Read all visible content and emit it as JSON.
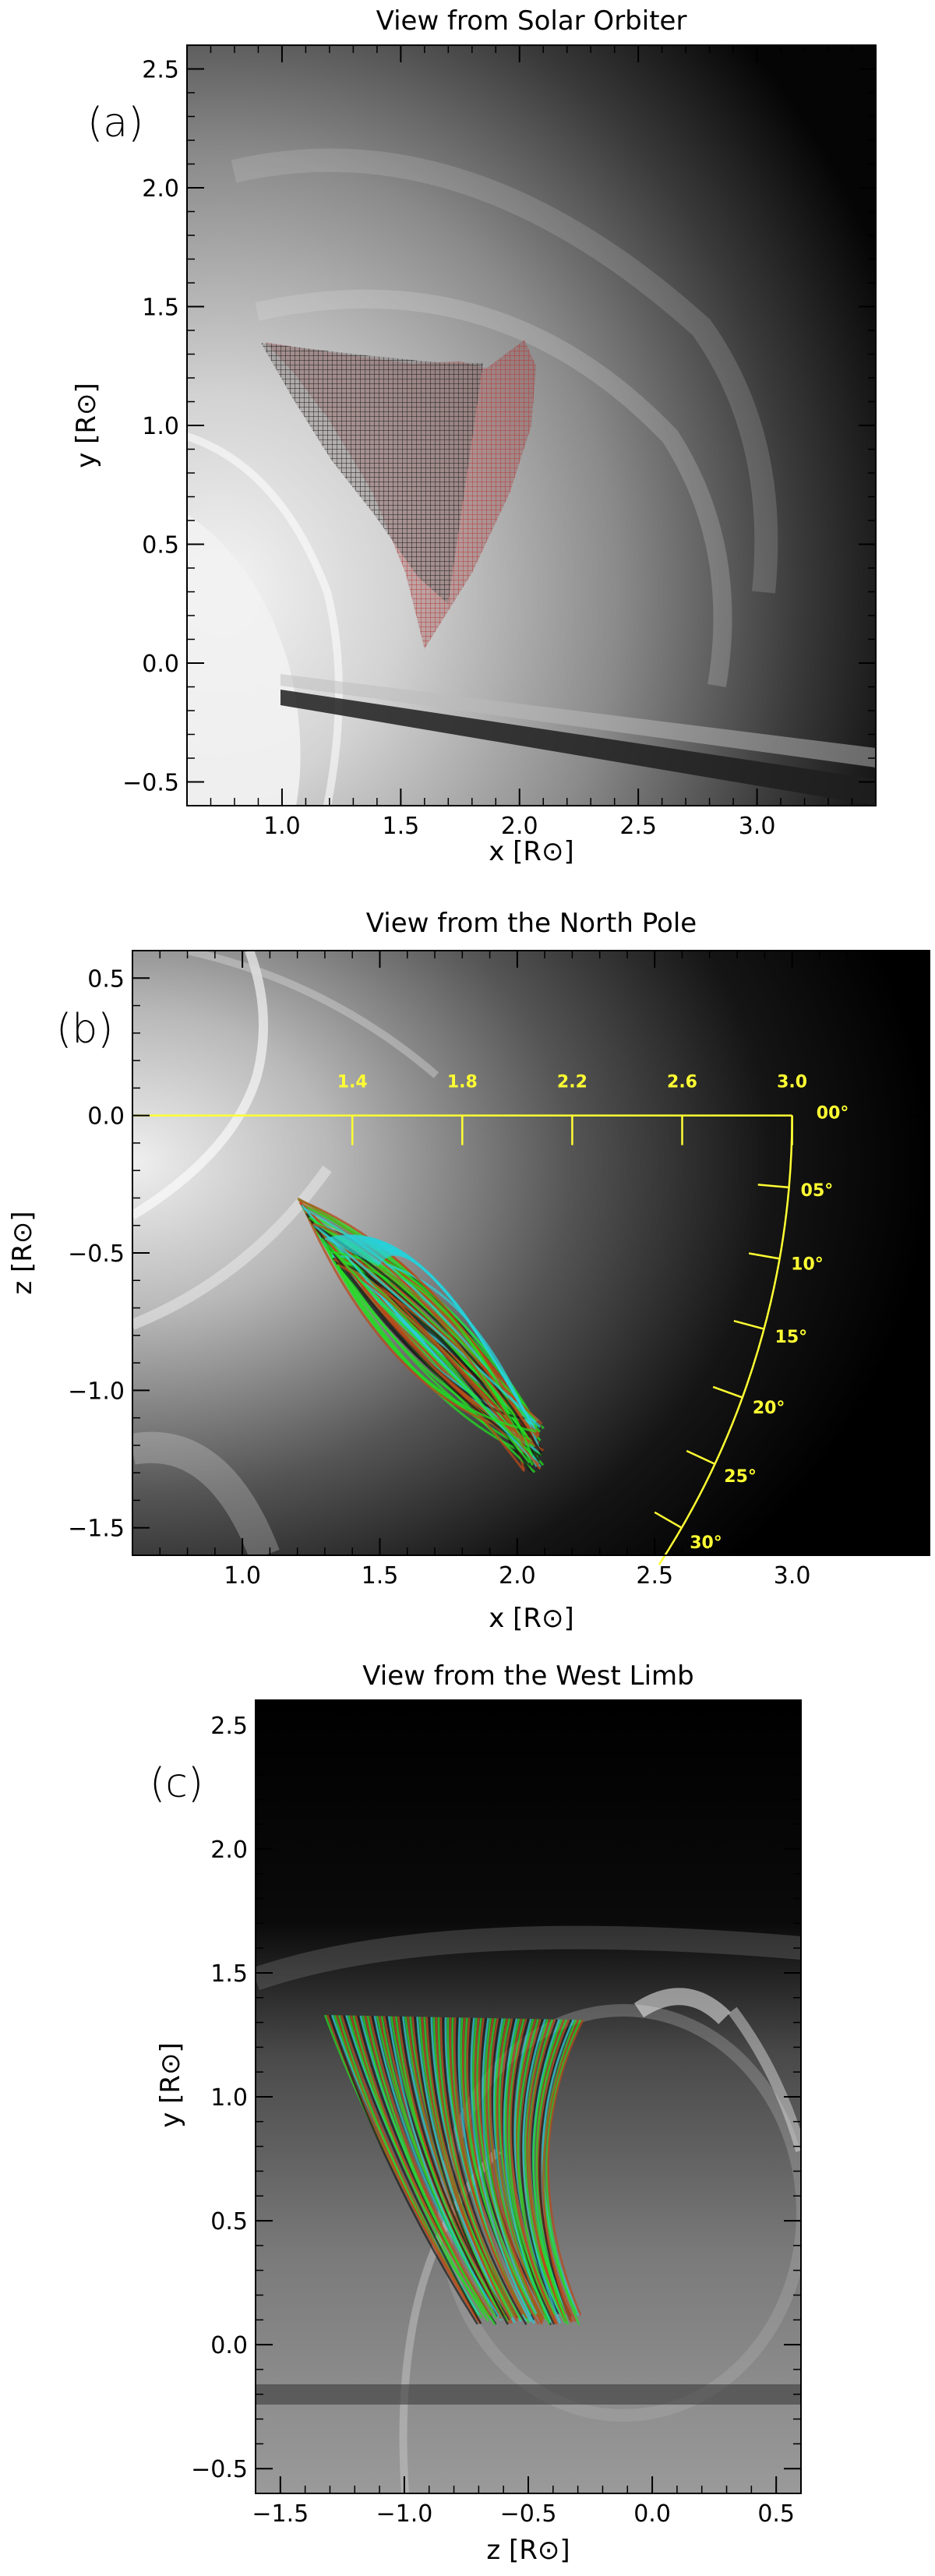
{
  "chart_data": [
    {
      "type": "image",
      "panel_label": "(a)",
      "title": "View from Solar Orbiter",
      "xlabel": "x [R⊙]",
      "ylabel": "y [R⊙]",
      "xlim": [
        0.6,
        3.5
      ],
      "ylim": [
        -0.6,
        2.6
      ],
      "x_ticks": [
        "1.0",
        "1.5",
        "2.0",
        "2.5",
        "3.0"
      ],
      "y_ticks": [
        "-0.5",
        "0.0",
        "0.5",
        "1.0",
        "1.5",
        "2.0",
        "2.5"
      ],
      "overlay": {
        "description_color_dark": "#1a1a1a",
        "description_color_red": "#b43c3c",
        "outline": [
          [
            0.93,
            1.35
          ],
          [
            1.25,
            1.3
          ],
          [
            1.55,
            1.26
          ],
          [
            1.75,
            1.27
          ],
          [
            1.86,
            1.24
          ],
          [
            2.02,
            1.36
          ],
          [
            2.07,
            1.25
          ],
          [
            2.05,
            1.0
          ],
          [
            1.96,
            0.72
          ],
          [
            1.8,
            0.38
          ],
          [
            1.6,
            0.06
          ],
          [
            1.52,
            0.38
          ],
          [
            1.38,
            0.72
          ],
          [
            1.2,
            1.02
          ],
          [
            1.05,
            1.22
          ]
        ]
      }
    },
    {
      "type": "image",
      "panel_label": "(b)",
      "title": "View from the North Pole",
      "xlabel": "x [R⊙]",
      "ylabel": "z [R⊙]",
      "xlim": [
        0.6,
        3.5
      ],
      "ylim": [
        -1.6,
        0.6
      ],
      "x_ticks": [
        "1.0",
        "1.5",
        "2.0",
        "2.5",
        "3.0"
      ],
      "y_ticks": [
        "-1.5",
        "-1.0",
        "-0.5",
        "0.0",
        "0.5"
      ],
      "radial_ticks": [
        "1.4",
        "1.8",
        "2.2",
        "2.6",
        "3.0"
      ],
      "radial_values": [
        1.4,
        1.8,
        2.2,
        2.6,
        3.0
      ],
      "angle_ticks": [
        "00°",
        "05°",
        "10°",
        "15°",
        "20°",
        "25°",
        "30°"
      ],
      "angle_values": [
        0,
        5,
        10,
        15,
        20,
        25,
        30
      ],
      "overlay_colors": [
        "#1a1a1a",
        "#2ad0d8",
        "#22dd22",
        "#b84a1a"
      ]
    },
    {
      "type": "image",
      "panel_label": "(c)",
      "title": "View from the West Limb",
      "xlabel": "z [R⊙]",
      "ylabel": "y [R⊙]",
      "xlim": [
        -1.6,
        0.6
      ],
      "ylim": [
        -0.6,
        2.6
      ],
      "x_ticks": [
        "-1.5",
        "-1.0",
        "-0.5",
        "0.0",
        "0.5"
      ],
      "y_ticks": [
        "-0.5",
        "0.0",
        "0.5",
        "1.0",
        "1.5",
        "2.0",
        "2.5"
      ],
      "overlay_colors": [
        "#1a1a1a",
        "#2ad0d8",
        "#22dd22",
        "#b84a1a"
      ]
    }
  ]
}
